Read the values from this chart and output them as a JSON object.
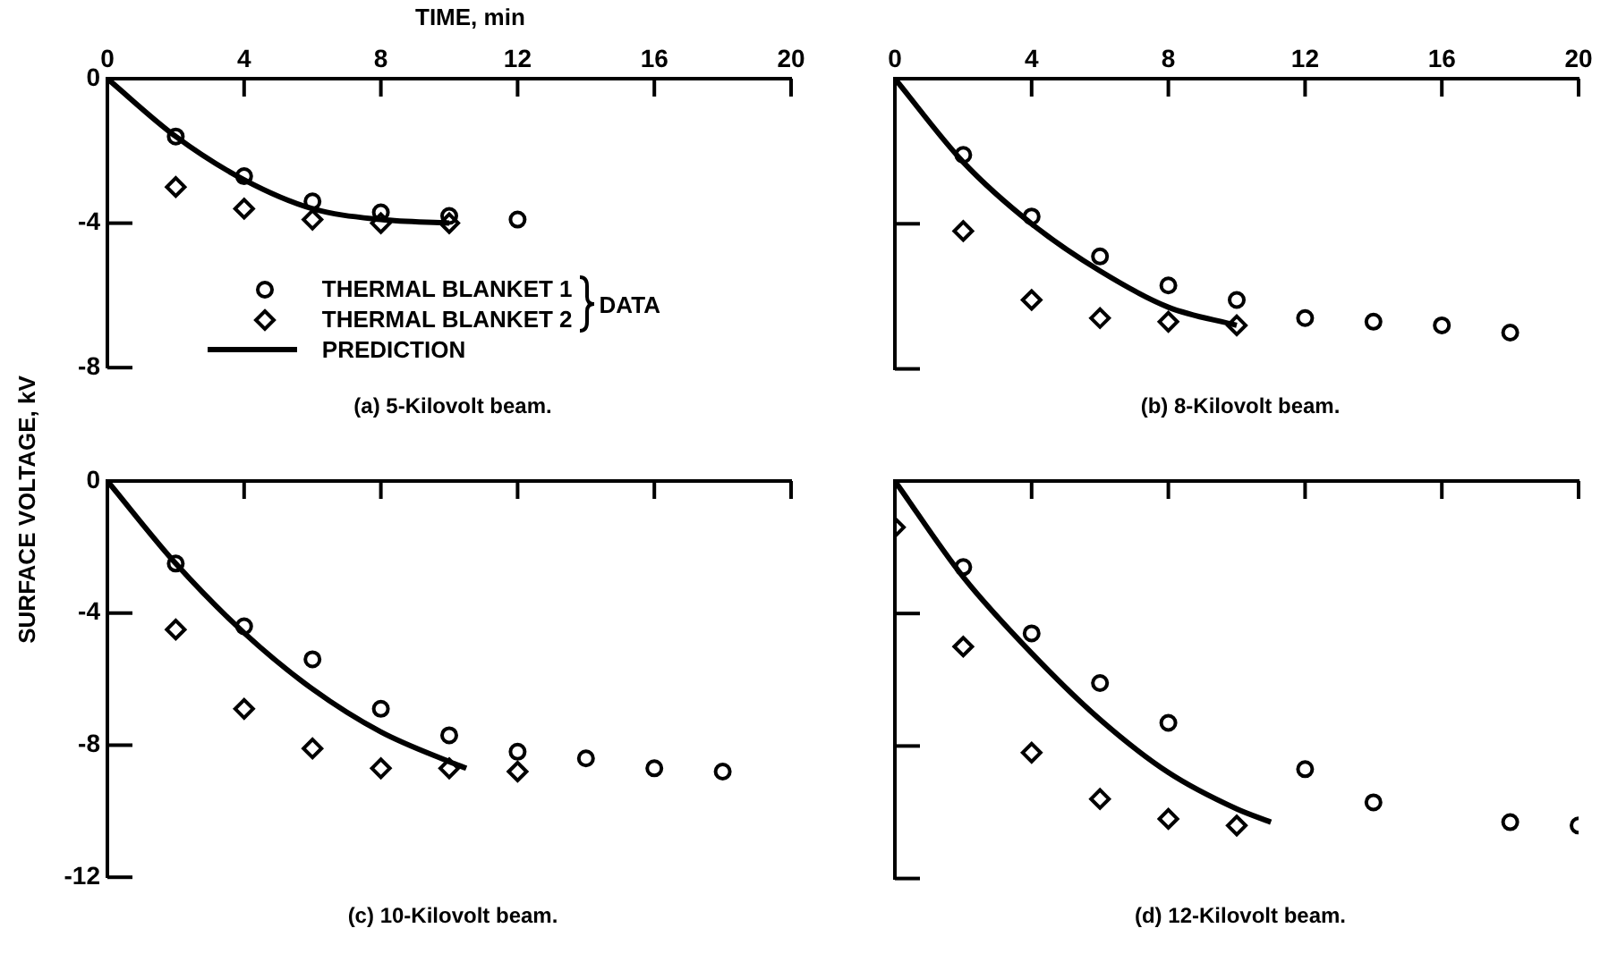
{
  "chart_data": [
    {
      "type": "scatter",
      "title": "(a) 5-Kilovolt beam.",
      "xlabel": "TIME, min",
      "xlim": [
        0,
        20
      ],
      "xticks": [
        0,
        4,
        8,
        12,
        16,
        20
      ],
      "ylim": [
        -8,
        0
      ],
      "yticks": [
        0,
        -4,
        -8
      ],
      "legend": "bottom",
      "annotations": [
        "DATA"
      ],
      "series": [
        {
          "name": "THERMAL BLANKET 1",
          "color": "#000000",
          "marker": "circle",
          "x": [
            2,
            4,
            6,
            8,
            10,
            12
          ],
          "values": [
            -1.6,
            -2.7,
            -3.4,
            -3.7,
            -3.8,
            -3.9
          ]
        },
        {
          "name": "THERMAL BLANKET 2",
          "color": "#000000",
          "marker": "diamond",
          "x": [
            2,
            4,
            6,
            8,
            10
          ],
          "values": [
            -3.0,
            -3.6,
            -3.9,
            -4.0,
            -4.0
          ]
        },
        {
          "name": "PREDICTION",
          "type": "line",
          "color": "#000000",
          "marker": "none",
          "line_style": "solid",
          "x": [
            0,
            2,
            4,
            6,
            8,
            10
          ],
          "values": [
            0,
            -1.6,
            -2.8,
            -3.6,
            -3.9,
            -4.0
          ]
        }
      ]
    },
    {
      "type": "scatter",
      "title": "(b) 8-Kilovolt beam.",
      "xlim": [
        0,
        20
      ],
      "xticks": [
        0,
        4,
        8,
        12,
        16,
        20
      ],
      "ylim": [
        -8,
        0
      ],
      "yticks": [
        0,
        -4,
        -8
      ],
      "tick_labels": "x",
      "series": [
        {
          "color": "#000000",
          "marker": "circle",
          "x": [
            2,
            4,
            6,
            8,
            10,
            12,
            14,
            16,
            18
          ],
          "values": [
            -2.1,
            -3.8,
            -4.9,
            -5.7,
            -6.1,
            -6.6,
            -6.7,
            -6.8,
            -7.0
          ]
        },
        {
          "color": "#000000",
          "marker": "diamond",
          "x": [
            2,
            4,
            6,
            8,
            10
          ],
          "values": [
            -4.2,
            -6.1,
            -6.6,
            -6.7,
            -6.8
          ]
        },
        {
          "type": "line",
          "color": "#000000",
          "marker": "none",
          "line_style": "solid",
          "x": [
            0,
            2,
            4,
            6,
            8,
            10
          ],
          "values": [
            0,
            -2.3,
            -4.0,
            -5.3,
            -6.3,
            -6.8
          ]
        }
      ]
    },
    {
      "type": "scatter",
      "title": "(c) 10-Kilovolt beam.",
      "ylabel": "SURFACE VOLTAGE, kV",
      "xlim": [
        0,
        20
      ],
      "xticks": [
        0,
        4,
        8,
        12,
        16,
        20
      ],
      "ylim": [
        -12,
        0
      ],
      "yticks": [
        0,
        -4,
        -8,
        -12
      ],
      "tick_labels": "y",
      "series": [
        {
          "color": "#000000",
          "marker": "circle",
          "x": [
            2,
            4,
            6,
            8,
            10,
            12,
            14,
            16,
            18
          ],
          "values": [
            -2.5,
            -4.4,
            -5.4,
            -6.9,
            -7.7,
            -8.2,
            -8.4,
            -8.7,
            -8.8
          ]
        },
        {
          "color": "#000000",
          "marker": "diamond",
          "x": [
            2,
            4,
            6,
            8,
            10,
            12
          ],
          "values": [
            -4.5,
            -6.9,
            -8.1,
            -8.7,
            -8.7,
            -8.8
          ]
        },
        {
          "type": "line",
          "color": "#000000",
          "marker": "none",
          "line_style": "solid",
          "x": [
            0,
            2,
            4,
            6,
            8,
            10,
            10.5
          ],
          "values": [
            0,
            -2.5,
            -4.6,
            -6.3,
            -7.6,
            -8.5,
            -8.7
          ]
        }
      ]
    },
    {
      "type": "scatter",
      "title": "(d) 12-Kilovolt beam.",
      "xlim": [
        0,
        20
      ],
      "xticks": [
        0,
        4,
        8,
        12,
        16,
        20
      ],
      "ylim": [
        -12,
        0
      ],
      "yticks": [
        0,
        -4,
        -8,
        -12
      ],
      "tick_labels": false,
      "series": [
        {
          "color": "#000000",
          "marker": "circle",
          "x": [
            2,
            4,
            6,
            8,
            12,
            14,
            18,
            20
          ],
          "values": [
            -2.6,
            -4.6,
            -6.1,
            -7.3,
            -8.7,
            -9.7,
            -10.3,
            -10.4
          ]
        },
        {
          "color": "#000000",
          "marker": "diamond",
          "x": [
            0,
            2,
            4,
            6,
            8,
            10
          ],
          "values": [
            -1.4,
            -5.0,
            -8.2,
            -9.6,
            -10.2,
            -10.4
          ]
        },
        {
          "type": "line",
          "color": "#000000",
          "marker": "none",
          "line_style": "solid",
          "x": [
            0,
            2,
            4,
            6,
            8,
            10,
            11
          ],
          "values": [
            0,
            -2.9,
            -5.2,
            -7.2,
            -8.8,
            -9.9,
            -10.3
          ]
        }
      ]
    }
  ]
}
